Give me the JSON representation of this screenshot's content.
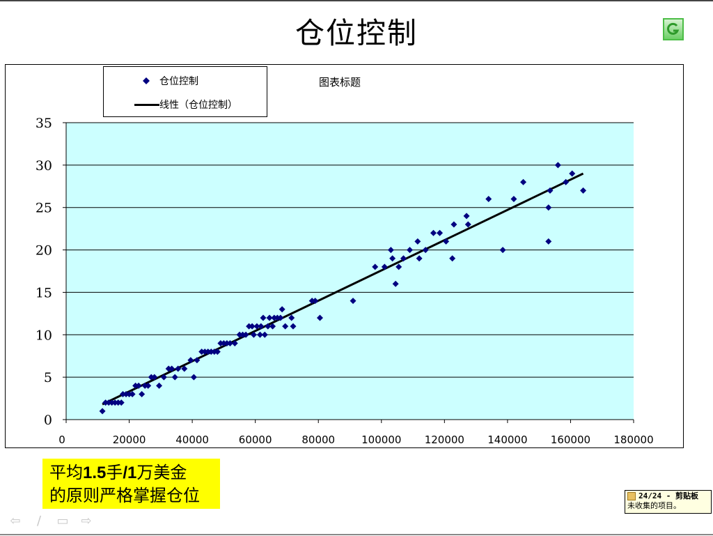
{
  "slide": {
    "title": "仓位控制",
    "logo_icon": "green-g-logo-icon"
  },
  "legend": {
    "series_label": "仓位控制",
    "trend_label": "线性（仓位控制）"
  },
  "chart_subtitle": "图表标题",
  "callout": {
    "line1_a": "平均",
    "line1_b": "1.5",
    "line1_c": "手",
    "line1_d": "/1",
    "line1_e": "万美金",
    "line2": "的原则严格掌握仓位"
  },
  "nav": {
    "prev": "⇦",
    "pen": "∕",
    "menu": "▭",
    "next": "⇨"
  },
  "clipboard": {
    "header": "24/24 - 剪贴板",
    "body": "未收集的项目。"
  },
  "colors": {
    "plot_bg": "#ccffff",
    "marker": "#000080",
    "trendline": "#000000",
    "callout_bg": "#ffff00"
  },
  "chart_data": {
    "type": "scatter",
    "title": "图表标题",
    "xlabel": "",
    "ylabel": "",
    "xlim": [
      0,
      180000
    ],
    "ylim": [
      0,
      35
    ],
    "x_ticks": [
      0,
      20000,
      40000,
      60000,
      80000,
      100000,
      120000,
      140000,
      160000,
      180000
    ],
    "y_ticks": [
      0,
      5,
      10,
      15,
      20,
      25,
      30,
      35
    ],
    "grid": "horizontal",
    "legend_position": "top-left",
    "series": [
      {
        "name": "仓位控制",
        "marker": "diamond",
        "points": [
          [
            11500,
            1
          ],
          [
            12500,
            2
          ],
          [
            13500,
            2
          ],
          [
            14500,
            2
          ],
          [
            15500,
            2
          ],
          [
            16500,
            2
          ],
          [
            17500,
            2
          ],
          [
            18000,
            3
          ],
          [
            19000,
            3
          ],
          [
            20000,
            3
          ],
          [
            21000,
            3
          ],
          [
            22000,
            4
          ],
          [
            23000,
            4
          ],
          [
            24000,
            3
          ],
          [
            25000,
            4
          ],
          [
            26000,
            4
          ],
          [
            27000,
            5
          ],
          [
            28000,
            5
          ],
          [
            29500,
            4
          ],
          [
            31000,
            5
          ],
          [
            32500,
            6
          ],
          [
            33500,
            6
          ],
          [
            34500,
            5
          ],
          [
            35500,
            6
          ],
          [
            37500,
            6
          ],
          [
            39500,
            7
          ],
          [
            40500,
            5
          ],
          [
            41500,
            7
          ],
          [
            43000,
            8
          ],
          [
            44000,
            8
          ],
          [
            45000,
            8
          ],
          [
            46000,
            8
          ],
          [
            47000,
            8
          ],
          [
            48000,
            8
          ],
          [
            49000,
            9
          ],
          [
            50000,
            9
          ],
          [
            51000,
            9
          ],
          [
            52000,
            9
          ],
          [
            53500,
            9
          ],
          [
            55000,
            10
          ],
          [
            56000,
            10
          ],
          [
            57000,
            10
          ],
          [
            58000,
            11
          ],
          [
            59000,
            11
          ],
          [
            59500,
            10
          ],
          [
            60500,
            11
          ],
          [
            61500,
            10
          ],
          [
            61800,
            11
          ],
          [
            62500,
            12
          ],
          [
            63000,
            10
          ],
          [
            64000,
            11
          ],
          [
            64500,
            12
          ],
          [
            65500,
            11
          ],
          [
            66000,
            12
          ],
          [
            67000,
            12
          ],
          [
            68000,
            12
          ],
          [
            68500,
            13
          ],
          [
            69500,
            11
          ],
          [
            71500,
            12
          ],
          [
            72000,
            11
          ],
          [
            78000,
            14
          ],
          [
            79000,
            14
          ],
          [
            80500,
            12
          ],
          [
            91000,
            14
          ],
          [
            98000,
            18
          ],
          [
            101000,
            18
          ],
          [
            103000,
            20
          ],
          [
            103500,
            19
          ],
          [
            104500,
            16
          ],
          [
            105500,
            18
          ],
          [
            107000,
            19
          ],
          [
            109000,
            20
          ],
          [
            111500,
            21
          ],
          [
            112000,
            19
          ],
          [
            114000,
            20
          ],
          [
            116500,
            22
          ],
          [
            118500,
            22
          ],
          [
            120500,
            21
          ],
          [
            122500,
            19
          ],
          [
            123000,
            23
          ],
          [
            127000,
            24
          ],
          [
            127500,
            23
          ],
          [
            134000,
            26
          ],
          [
            138500,
            20
          ],
          [
            142000,
            26
          ],
          [
            145000,
            28
          ],
          [
            153000,
            21
          ],
          [
            153000,
            25
          ],
          [
            153500,
            27
          ],
          [
            156000,
            30
          ],
          [
            158500,
            28
          ],
          [
            160500,
            29
          ],
          [
            164000,
            27
          ]
        ]
      },
      {
        "name": "线性（仓位控制）",
        "type": "line",
        "points": [
          [
            11500,
            1.8
          ],
          [
            164000,
            29
          ]
        ]
      }
    ]
  }
}
